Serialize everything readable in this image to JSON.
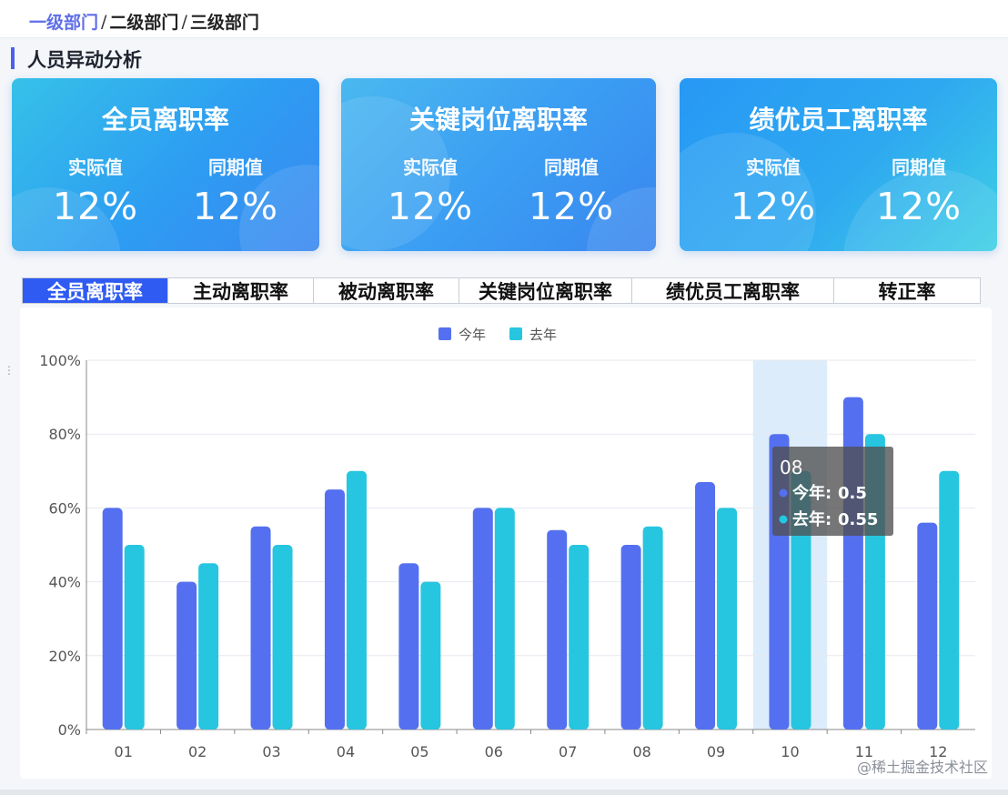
{
  "breadcrumb": {
    "level1": "一级部门",
    "level2": "二级部门",
    "level3": "三级部门",
    "separator": "/"
  },
  "section": {
    "title": "人员异动分析"
  },
  "cards": [
    {
      "title": "全员离职率",
      "actual_label": "实际值",
      "actual_value": "12%",
      "prior_label": "同期值",
      "prior_value": "12%"
    },
    {
      "title": "关键岗位离职率",
      "actual_label": "实际值",
      "actual_value": "12%",
      "prior_label": "同期值",
      "prior_value": "12%"
    },
    {
      "title": "绩优员工离职率",
      "actual_label": "实际值",
      "actual_value": "12%",
      "prior_label": "同期值",
      "prior_value": "12%"
    }
  ],
  "tabs": [
    {
      "label": "全员离职率",
      "active": true
    },
    {
      "label": "主动离职率",
      "active": false
    },
    {
      "label": "被动离职率",
      "active": false
    },
    {
      "label": "关键岗位离职率",
      "active": false
    },
    {
      "label": "绩优员工离职率",
      "active": false
    },
    {
      "label": "转正率",
      "active": false
    }
  ],
  "colors": {
    "this_year": "#5470f0",
    "last_year": "#26c6e0",
    "active_tab": "#2f5bf2",
    "highlight": "#dcecfb"
  },
  "chart_data": {
    "type": "bar",
    "categories": [
      "01",
      "02",
      "03",
      "04",
      "05",
      "06",
      "07",
      "08",
      "09",
      "10",
      "11",
      "12"
    ],
    "series": [
      {
        "name": "今年",
        "values": [
          0.6,
          0.4,
          0.55,
          0.65,
          0.45,
          0.6,
          0.54,
          0.5,
          0.67,
          0.8,
          0.9,
          0.56
        ]
      },
      {
        "name": "去年",
        "values": [
          0.5,
          0.45,
          0.5,
          0.7,
          0.4,
          0.6,
          0.5,
          0.55,
          0.6,
          0.7,
          0.8,
          0.7
        ]
      }
    ],
    "ylim": [
      0,
      1
    ],
    "y_ticks": [
      "0%",
      "20%",
      "40%",
      "60%",
      "80%",
      "100%"
    ],
    "y_tick_values": [
      0,
      0.2,
      0.4,
      0.6,
      0.8,
      1.0
    ],
    "legend_position": "top-center",
    "highlighted_category": "10",
    "tooltip": {
      "title": "08",
      "rows": [
        {
          "label": "今年:",
          "value": "0.5"
        },
        {
          "label": "去年:",
          "value": "0.55"
        }
      ]
    }
  },
  "watermark": "@稀土掘金技术社区"
}
